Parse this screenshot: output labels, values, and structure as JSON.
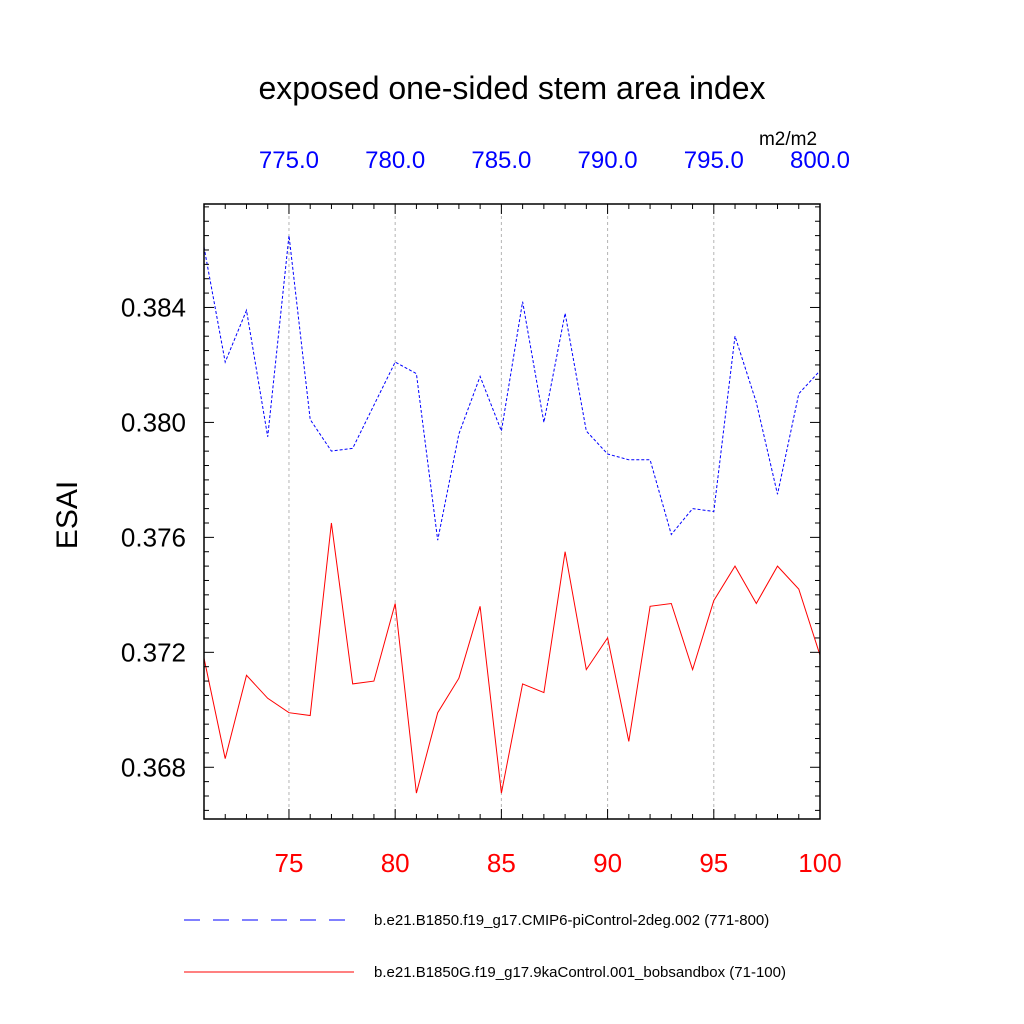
{
  "chart_data": {
    "type": "line",
    "title": "exposed one-sided stem area index",
    "units": "m2/m2",
    "ylabel": "ESAI",
    "ylim": [
      0.3662,
      0.3876
    ],
    "yticks_major": [
      0.368,
      0.372,
      0.376,
      0.38,
      0.384
    ],
    "ytick_labels": [
      "0.368",
      "0.372",
      "0.376",
      "0.380",
      "0.384"
    ],
    "x_bottom": {
      "range": [
        71,
        100
      ],
      "ticks": [
        75,
        80,
        85,
        90,
        95,
        100
      ],
      "tick_labels": [
        "75",
        "80",
        "85",
        "90",
        "95",
        "100"
      ],
      "color": "#ff0000"
    },
    "x_top": {
      "range": [
        771,
        800
      ],
      "ticks": [
        775,
        780,
        785,
        790,
        795,
        800
      ],
      "tick_labels": [
        "775.0",
        "780.0",
        "785.0",
        "790.0",
        "795.0",
        "800.0"
      ],
      "color": "#0000ff"
    },
    "grid": "vertical dashed at major x ticks",
    "series": [
      {
        "name": "b.e21.B1850.f19_g17.CMIP6-piControl-2deg.002 (771-800)",
        "axis": "top",
        "color": "#0000ff",
        "style": "dashed",
        "x": [
          771,
          772,
          773,
          774,
          775,
          776,
          777,
          778,
          779,
          780,
          781,
          782,
          783,
          784,
          785,
          786,
          787,
          788,
          789,
          790,
          791,
          792,
          793,
          794,
          795,
          796,
          797,
          798,
          799,
          800
        ],
        "values": [
          0.3861,
          0.3821,
          0.3839,
          0.3795,
          0.3865,
          0.3801,
          0.379,
          0.3791,
          0.3806,
          0.3821,
          0.3817,
          0.3759,
          0.3796,
          0.3816,
          0.3797,
          0.3842,
          0.38,
          0.3838,
          0.3797,
          0.3789,
          0.3787,
          0.3787,
          0.3761,
          0.377,
          0.3769,
          0.383,
          0.3807,
          0.3775,
          0.381,
          0.3818
        ]
      },
      {
        "name": "b.e21.B1850G.f19_g17.9kaControl.001_bobsandbox (71-100)",
        "axis": "bottom",
        "color": "#ff0000",
        "style": "solid",
        "x": [
          71,
          72,
          73,
          74,
          75,
          76,
          77,
          78,
          79,
          80,
          81,
          82,
          83,
          84,
          85,
          86,
          87,
          88,
          89,
          90,
          91,
          92,
          93,
          94,
          95,
          96,
          97,
          98,
          99,
          100
        ],
        "values": [
          0.3718,
          0.3683,
          0.3712,
          0.3704,
          0.3699,
          0.3698,
          0.3765,
          0.3709,
          0.371,
          0.3737,
          0.3671,
          0.3699,
          0.3711,
          0.3736,
          0.3671,
          0.3709,
          0.3706,
          0.3755,
          0.3714,
          0.3725,
          0.3689,
          0.3736,
          0.3737,
          0.3714,
          0.3738,
          0.375,
          0.3737,
          0.375,
          0.3742,
          0.3719
        ]
      }
    ]
  }
}
